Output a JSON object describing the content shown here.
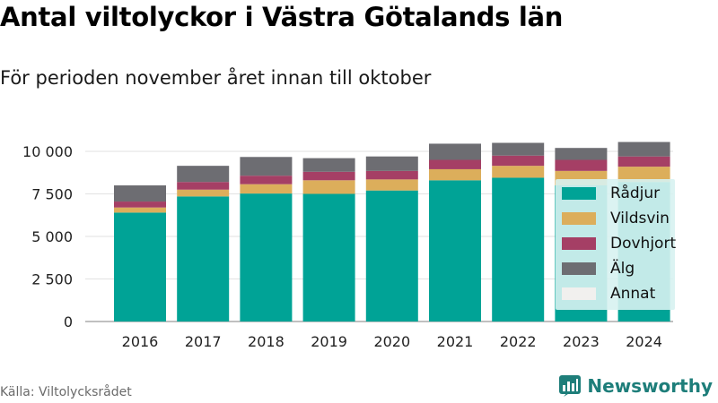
{
  "title": "Antal viltolyckor i Västra Götalands län",
  "subtitle": "För perioden november året innan till oktober",
  "source": "Källa: Viltolycksrådet",
  "brand": "Newsworthy",
  "colors": {
    "Rådjur": "#00a396",
    "Vildsvin": "#dcae5b",
    "Dovhjort": "#a53f65",
    "Älg": "#6d6d72",
    "Annat": "#f1f0ee",
    "brand": "#1e7e7a"
  },
  "chart_data": {
    "type": "bar",
    "stacked": true,
    "categories": [
      "2016",
      "2017",
      "2018",
      "2019",
      "2020",
      "2021",
      "2022",
      "2023",
      "2024"
    ],
    "series": [
      {
        "name": "Rådjur",
        "values": [
          6400,
          7350,
          7520,
          7500,
          7700,
          8300,
          8450,
          8000,
          8200
        ]
      },
      {
        "name": "Vildsvin",
        "values": [
          300,
          400,
          550,
          800,
          650,
          650,
          700,
          850,
          900
        ]
      },
      {
        "name": "Dovhjort",
        "values": [
          350,
          450,
          500,
          500,
          500,
          550,
          600,
          650,
          600
        ]
      },
      {
        "name": "Älg",
        "values": [
          950,
          950,
          1100,
          800,
          850,
          950,
          750,
          700,
          850
        ]
      },
      {
        "name": "Annat",
        "values": [
          0,
          0,
          0,
          0,
          0,
          0,
          0,
          0,
          0
        ]
      }
    ],
    "yticks": [
      0,
      2500,
      5000,
      7500,
      10000
    ],
    "ytick_labels": [
      "0",
      "2 500",
      "5 000",
      "7 500",
      "10 000"
    ],
    "ylim": [
      0,
      11000
    ],
    "grid": true,
    "legend_position": "right"
  }
}
